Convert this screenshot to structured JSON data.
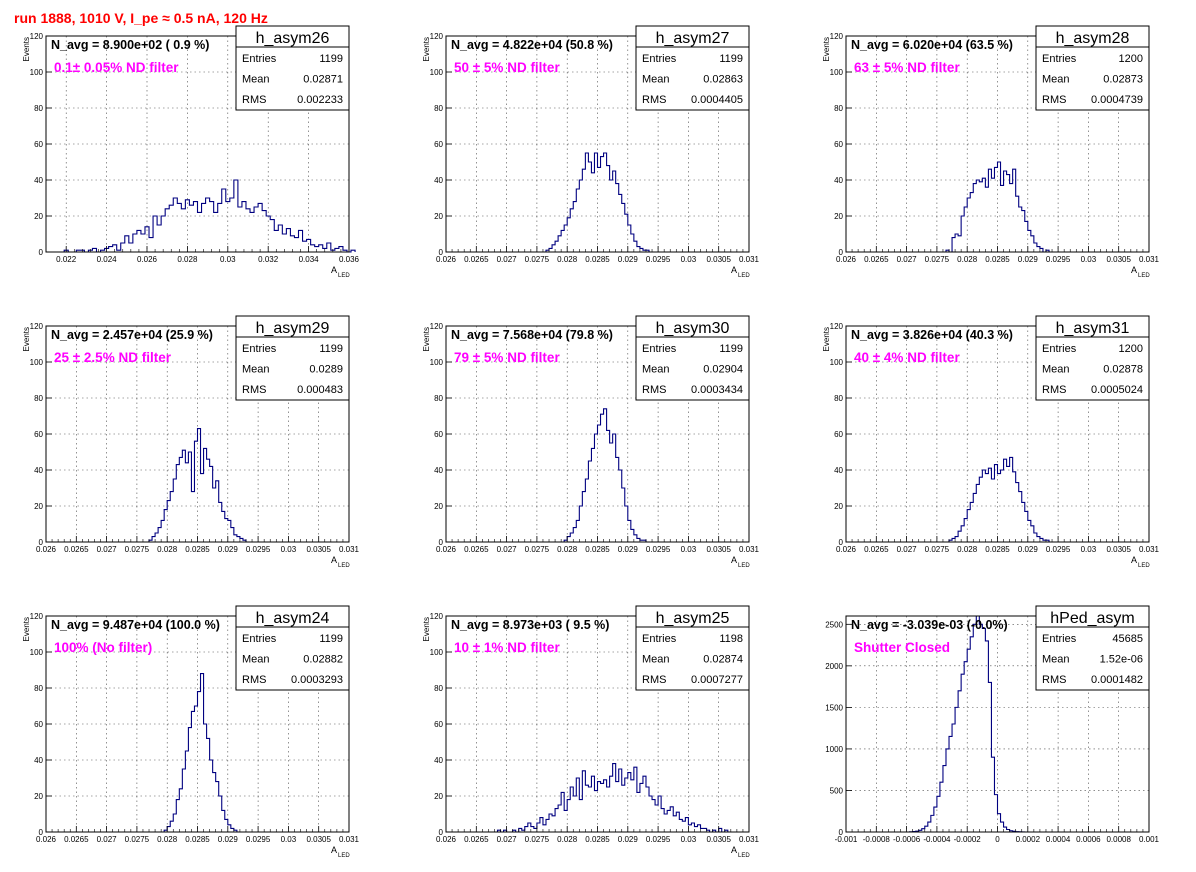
{
  "run_title": "run 1888,  1010 V, I_pe ≈ 0.5 nA, 120 Hz",
  "colors": {
    "histogram": "#000080",
    "run_title": "#ff0000",
    "annotation": "#ff00ff",
    "grid": "#000000"
  },
  "chart_data": [
    {
      "type": "bar",
      "name": "h_asym26",
      "navg_text": "N_avg = 8.900e+02 ( 0.9 %)",
      "filter_text": "0.1± 0.05% ND filter",
      "stats": [
        [
          "Entries",
          "1199"
        ],
        [
          "Mean",
          "0.02871"
        ],
        [
          "RMS",
          "0.002233"
        ]
      ],
      "ylabel": "Events",
      "xlabel": "A",
      "xlabel_sub": "LED",
      "xlim": [
        0.021,
        0.036
      ],
      "ylim": [
        0,
        120
      ],
      "xticks": [
        0.022,
        0.024,
        0.026,
        0.028,
        0.03,
        0.032,
        0.034,
        0.036
      ],
      "xticklabels": [
        "0.022",
        "0.024",
        "0.026",
        "0.028",
        "0.03",
        "0.032",
        "0.034",
        "0.036"
      ],
      "yticks": [
        0,
        20,
        40,
        60,
        80,
        100,
        120
      ],
      "yticklabels": [
        "0",
        "20",
        "40",
        "60",
        "80",
        "100",
        "120"
      ],
      "bin_start": 0.0215,
      "bin_width": 0.0002,
      "values": [
        0,
        0,
        1,
        0,
        0,
        1,
        1,
        0,
        1,
        2,
        0,
        1,
        2,
        3,
        4,
        1,
        5,
        9,
        5,
        10,
        12,
        10,
        14,
        8,
        20,
        15,
        20,
        24,
        26,
        30,
        27,
        24,
        29,
        26,
        28,
        22,
        27,
        30,
        28,
        22,
        27,
        35,
        28,
        30,
        40,
        25,
        28,
        24,
        22,
        25,
        27,
        23,
        20,
        18,
        12,
        15,
        10,
        13,
        9,
        8,
        12,
        6,
        7,
        4,
        3,
        4,
        2,
        5,
        1,
        2,
        3,
        1,
        0,
        1
      ]
    },
    {
      "type": "bar",
      "name": "h_asym27",
      "navg_text": "N_avg = 4.822e+04 (50.8 %)",
      "filter_text": "50 ± 5% ND filter",
      "stats": [
        [
          "Entries",
          "1199"
        ],
        [
          "Mean",
          "0.02863"
        ],
        [
          "RMS",
          "0.0004405"
        ]
      ],
      "ylabel": "Events",
      "xlabel": "A",
      "xlabel_sub": "LED",
      "xlim": [
        0.026,
        0.031
      ],
      "ylim": [
        0,
        120
      ],
      "xticks": [
        0.026,
        0.0265,
        0.027,
        0.0275,
        0.028,
        0.0285,
        0.029,
        0.0295,
        0.03,
        0.0305,
        0.031
      ],
      "xticklabels": [
        "0.026",
        "0.0265",
        "0.027",
        "0.0275",
        "0.028",
        "0.0285",
        "0.029",
        "0.0295",
        "0.03",
        "0.0305",
        "0.031"
      ],
      "yticks": [
        0,
        20,
        40,
        60,
        80,
        100,
        120
      ],
      "yticklabels": [
        "0",
        "20",
        "40",
        "60",
        "80",
        "100",
        "120"
      ],
      "bin_start": 0.027,
      "bin_width": 5e-05,
      "values": [
        0,
        0,
        0,
        0,
        0,
        0,
        0,
        0,
        0,
        0,
        0,
        0,
        0,
        1,
        2,
        4,
        6,
        9,
        12,
        15,
        19,
        24,
        28,
        35,
        40,
        46,
        55,
        50,
        44,
        55,
        47,
        53,
        55,
        48,
        40,
        45,
        38,
        32,
        27,
        21,
        15,
        10,
        6,
        3,
        2,
        1,
        1,
        0,
        0,
        0
      ]
    },
    {
      "type": "bar",
      "name": "h_asym28",
      "navg_text": "N_avg = 6.020e+04 (63.5 %)",
      "filter_text": "63 ± 5% ND filter",
      "stats": [
        [
          "Entries",
          "1200"
        ],
        [
          "Mean",
          "0.02873"
        ],
        [
          "RMS",
          "0.0004739"
        ]
      ],
      "ylabel": "Events",
      "xlabel": "A",
      "xlabel_sub": "LED",
      "xlim": [
        0.026,
        0.031
      ],
      "ylim": [
        0,
        120
      ],
      "xticks": [
        0.026,
        0.0265,
        0.027,
        0.0275,
        0.028,
        0.0285,
        0.029,
        0.0295,
        0.03,
        0.0305,
        0.031
      ],
      "xticklabels": [
        "0.026",
        "0.0265",
        "0.027",
        "0.0275",
        "0.028",
        "0.0285",
        "0.029",
        "0.0295",
        "0.03",
        "0.0305",
        "0.031"
      ],
      "yticks": [
        0,
        20,
        40,
        60,
        80,
        100,
        120
      ],
      "yticklabels": [
        "0",
        "20",
        "40",
        "60",
        "80",
        "100",
        "120"
      ],
      "bin_start": 0.027,
      "bin_width": 5e-05,
      "values": [
        0,
        0,
        0,
        0,
        0,
        0,
        0,
        0,
        0,
        0,
        0,
        0,
        0,
        1,
        0,
        8,
        10,
        9,
        20,
        25,
        30,
        33,
        38,
        40,
        39,
        41,
        36,
        46,
        41,
        47,
        50,
        37,
        45,
        43,
        38,
        46,
        31,
        25,
        23,
        17,
        12,
        9,
        5,
        3,
        2,
        0,
        1,
        0,
        0,
        0
      ]
    },
    {
      "type": "bar",
      "name": "h_asym29",
      "navg_text": "N_avg = 2.457e+04 (25.9 %)",
      "filter_text": "25 ± 2.5% ND filter",
      "stats": [
        [
          "Entries",
          "1199"
        ],
        [
          "Mean",
          "0.0289"
        ],
        [
          "RMS",
          "0.000483"
        ]
      ],
      "ylabel": "Events",
      "xlabel": "A",
      "xlabel_sub": "LED",
      "xlim": [
        0.026,
        0.031
      ],
      "ylim": [
        0,
        120
      ],
      "xticks": [
        0.026,
        0.0265,
        0.027,
        0.0275,
        0.028,
        0.0285,
        0.029,
        0.0295,
        0.03,
        0.0305,
        0.031
      ],
      "xticklabels": [
        "0.026",
        "0.0265",
        "0.027",
        "0.0275",
        "0.028",
        "0.0285",
        "0.029",
        "0.0295",
        "0.03",
        "0.0305",
        "0.031"
      ],
      "yticks": [
        0,
        20,
        40,
        60,
        80,
        100,
        120
      ],
      "yticklabels": [
        "0",
        "20",
        "40",
        "60",
        "80",
        "100",
        "120"
      ],
      "bin_start": 0.027,
      "bin_width": 5e-05,
      "values": [
        0,
        0,
        0,
        0,
        0,
        0,
        0,
        0,
        0,
        0,
        0,
        0,
        0,
        0,
        1,
        3,
        5,
        8,
        12,
        18,
        23,
        28,
        35,
        43,
        47,
        51,
        44,
        50,
        28,
        56,
        63,
        38,
        52,
        46,
        42,
        30,
        34,
        22,
        17,
        13,
        12,
        8,
        4,
        3,
        2,
        1,
        0,
        0,
        0,
        0
      ]
    },
    {
      "type": "bar",
      "name": "h_asym30",
      "navg_text": "N_avg = 7.568e+04 (79.8 %)",
      "filter_text": "79 ± 5% ND filter",
      "stats": [
        [
          "Entries",
          "1199"
        ],
        [
          "Mean",
          "0.02904"
        ],
        [
          "RMS",
          "0.0003434"
        ]
      ],
      "ylabel": "Events",
      "xlabel": "A",
      "xlabel_sub": "LED",
      "xlim": [
        0.026,
        0.031
      ],
      "ylim": [
        0,
        120
      ],
      "xticks": [
        0.026,
        0.0265,
        0.027,
        0.0275,
        0.028,
        0.0285,
        0.029,
        0.0295,
        0.03,
        0.0305,
        0.031
      ],
      "xticklabels": [
        "0.026",
        "0.0265",
        "0.027",
        "0.0275",
        "0.028",
        "0.0285",
        "0.029",
        "0.0295",
        "0.03",
        "0.0305",
        "0.031"
      ],
      "yticks": [
        0,
        20,
        40,
        60,
        80,
        100,
        120
      ],
      "yticklabels": [
        "0",
        "20",
        "40",
        "60",
        "80",
        "100",
        "120"
      ],
      "bin_start": 0.027,
      "bin_width": 5e-05,
      "values": [
        0,
        0,
        0,
        0,
        0,
        0,
        0,
        0,
        0,
        0,
        0,
        0,
        0,
        0,
        0,
        0,
        0,
        0,
        0,
        1,
        3,
        5,
        8,
        12,
        20,
        28,
        35,
        45,
        52,
        60,
        65,
        71,
        74,
        62,
        55,
        60,
        47,
        40,
        30,
        20,
        12,
        7,
        4,
        2,
        1,
        1,
        0,
        0,
        0,
        0
      ]
    },
    {
      "type": "bar",
      "name": "h_asym31",
      "navg_text": "N_avg = 3.826e+04 (40.3 %)",
      "filter_text": "40 ± 4% ND filter",
      "stats": [
        [
          "Entries",
          "1200"
        ],
        [
          "Mean",
          "0.02878"
        ],
        [
          "RMS",
          "0.0005024"
        ]
      ],
      "ylabel": "Events",
      "xlabel": "A",
      "xlabel_sub": "LED",
      "xlim": [
        0.026,
        0.031
      ],
      "ylim": [
        0,
        120
      ],
      "xticks": [
        0.026,
        0.0265,
        0.027,
        0.0275,
        0.028,
        0.0285,
        0.029,
        0.0295,
        0.03,
        0.0305,
        0.031
      ],
      "xticklabels": [
        "0.026",
        "0.0265",
        "0.027",
        "0.0275",
        "0.028",
        "0.0285",
        "0.029",
        "0.0295",
        "0.03",
        "0.0305",
        "0.031"
      ],
      "yticks": [
        0,
        20,
        40,
        60,
        80,
        100,
        120
      ],
      "yticklabels": [
        "0",
        "20",
        "40",
        "60",
        "80",
        "100",
        "120"
      ],
      "bin_start": 0.027,
      "bin_width": 5e-05,
      "values": [
        0,
        0,
        0,
        0,
        0,
        0,
        0,
        0,
        0,
        0,
        0,
        0,
        0,
        0,
        1,
        2,
        3,
        6,
        9,
        13,
        18,
        22,
        27,
        32,
        36,
        40,
        38,
        41,
        35,
        43,
        38,
        40,
        46,
        42,
        47,
        39,
        33,
        28,
        22,
        17,
        12,
        9,
        5,
        3,
        2,
        1,
        1,
        0,
        0,
        0
      ]
    },
    {
      "type": "bar",
      "name": "h_asym24",
      "navg_text": "N_avg = 9.487e+04 (100.0 %)",
      "filter_text": "100% (No filter)",
      "stats": [
        [
          "Entries",
          "1199"
        ],
        [
          "Mean",
          "0.02882"
        ],
        [
          "RMS",
          "0.0003293"
        ]
      ],
      "ylabel": "Events",
      "xlabel": "A",
      "xlabel_sub": "LED",
      "xlim": [
        0.026,
        0.031
      ],
      "ylim": [
        0,
        120
      ],
      "xticks": [
        0.026,
        0.0265,
        0.027,
        0.0275,
        0.028,
        0.0285,
        0.029,
        0.0295,
        0.03,
        0.0305,
        0.031
      ],
      "xticklabels": [
        "0.026",
        "0.0265",
        "0.027",
        "0.0275",
        "0.028",
        "0.0285",
        "0.029",
        "0.0295",
        "0.03",
        "0.0305",
        "0.031"
      ],
      "yticks": [
        0,
        20,
        40,
        60,
        80,
        100,
        120
      ],
      "yticklabels": [
        "0",
        "20",
        "40",
        "60",
        "80",
        "100",
        "120"
      ],
      "bin_start": 0.027,
      "bin_width": 5e-05,
      "values": [
        0,
        0,
        0,
        0,
        0,
        0,
        0,
        0,
        0,
        0,
        0,
        0,
        0,
        0,
        0,
        0,
        0,
        0,
        0,
        1,
        3,
        6,
        10,
        18,
        24,
        35,
        45,
        58,
        67,
        70,
        78,
        88,
        60,
        52,
        40,
        33,
        28,
        20,
        12,
        7,
        4,
        2,
        1,
        0,
        0,
        0,
        0,
        0,
        0,
        0
      ]
    },
    {
      "type": "bar",
      "name": "h_asym25",
      "navg_text": "N_avg = 8.973e+03 ( 9.5 %)",
      "filter_text": "10 ± 1% ND filter",
      "stats": [
        [
          "Entries",
          "1198"
        ],
        [
          "Mean",
          "0.02874"
        ],
        [
          "RMS",
          "0.0007277"
        ]
      ],
      "ylabel": "Events",
      "xlabel": "A",
      "xlabel_sub": "LED",
      "xlim": [
        0.026,
        0.031
      ],
      "ylim": [
        0,
        120
      ],
      "xticks": [
        0.026,
        0.0265,
        0.027,
        0.0275,
        0.028,
        0.0285,
        0.029,
        0.0295,
        0.03,
        0.0305,
        0.031
      ],
      "xticklabels": [
        "0.026",
        "0.0265",
        "0.027",
        "0.0275",
        "0.028",
        "0.0285",
        "0.029",
        "0.0295",
        "0.03",
        "0.0305",
        "0.031"
      ],
      "yticks": [
        0,
        20,
        40,
        60,
        80,
        100,
        120
      ],
      "yticklabels": [
        "0",
        "20",
        "40",
        "60",
        "80",
        "100",
        "120"
      ],
      "bin_start": 0.026,
      "bin_width": 5e-05,
      "values": [
        0,
        0,
        0,
        0,
        0,
        0,
        0,
        0,
        0,
        0,
        0,
        0,
        0,
        0,
        0,
        0,
        0,
        1,
        0,
        1,
        0,
        0,
        1,
        0,
        2,
        1,
        3,
        5,
        3,
        2,
        5,
        8,
        4,
        7,
        10,
        9,
        13,
        15,
        22,
        12,
        18,
        25,
        20,
        30,
        18,
        34,
        26,
        25,
        31,
        23,
        28,
        27,
        29,
        25,
        31,
        38,
        28,
        35,
        26,
        30,
        33,
        29,
        36,
        22,
        27,
        31,
        25,
        20,
        18,
        15,
        20,
        13,
        10,
        12,
        14,
        9,
        11,
        7,
        6,
        8,
        4,
        5,
        3,
        4,
        2,
        2,
        1,
        0,
        1,
        0,
        2,
        0,
        1,
        0,
        0,
        0,
        0,
        0,
        0,
        0
      ]
    },
    {
      "type": "bar",
      "name": "hPed_asym",
      "navg_text": "N_avg = -3.039e-03 (-0.0%)",
      "filter_text": "Shutter Closed",
      "stats": [
        [
          "Entries",
          "45685"
        ],
        [
          "Mean",
          "1.52e-06"
        ],
        [
          "RMS",
          "0.0001482"
        ]
      ],
      "ylabel": "",
      "xlabel": "",
      "xlabel_sub": "",
      "xlim": [
        -0.001,
        0.001
      ],
      "ylim": [
        0,
        2600
      ],
      "xticks": [
        -0.001,
        -0.0008,
        -0.0006,
        -0.0004,
        -0.0002,
        0,
        0.0002,
        0.0004,
        0.0006,
        0.0008,
        0.001
      ],
      "xticklabels": [
        "-0.001",
        "-0.0008",
        "-0.0006",
        "-0.0004",
        "-0.0002",
        "0",
        "0.0002",
        "0.0004",
        "0.0006",
        "0.0008",
        "0.001"
      ],
      "yticks": [
        0,
        500,
        1000,
        1500,
        2000,
        2500
      ],
      "yticklabels": [
        "0",
        "500",
        "1000",
        "1500",
        "2000",
        "2500"
      ],
      "bin_start": -0.001,
      "bin_width": 2e-05,
      "values": [
        0,
        0,
        0,
        0,
        0,
        0,
        0,
        0,
        0,
        0,
        0,
        0,
        0,
        0,
        0,
        0,
        0,
        0,
        0,
        0,
        0,
        2,
        5,
        10,
        20,
        40,
        70,
        120,
        200,
        300,
        430,
        600,
        800,
        1000,
        1150,
        1300,
        1500,
        1700,
        1900,
        2050,
        2200,
        2350,
        2500,
        2600,
        2500,
        2450,
        2300,
        1800,
        900,
        450,
        220,
        120,
        60,
        30,
        15,
        8,
        4,
        2,
        1,
        0,
        0,
        0,
        0,
        0,
        0,
        0,
        0,
        0,
        0,
        0,
        0,
        0,
        0,
        0,
        0,
        0,
        0,
        0,
        0,
        0,
        0,
        0,
        0,
        0,
        0,
        0,
        0,
        0,
        0,
        0,
        0,
        0,
        0,
        0,
        0,
        0,
        0,
        0,
        0,
        0
      ]
    }
  ]
}
